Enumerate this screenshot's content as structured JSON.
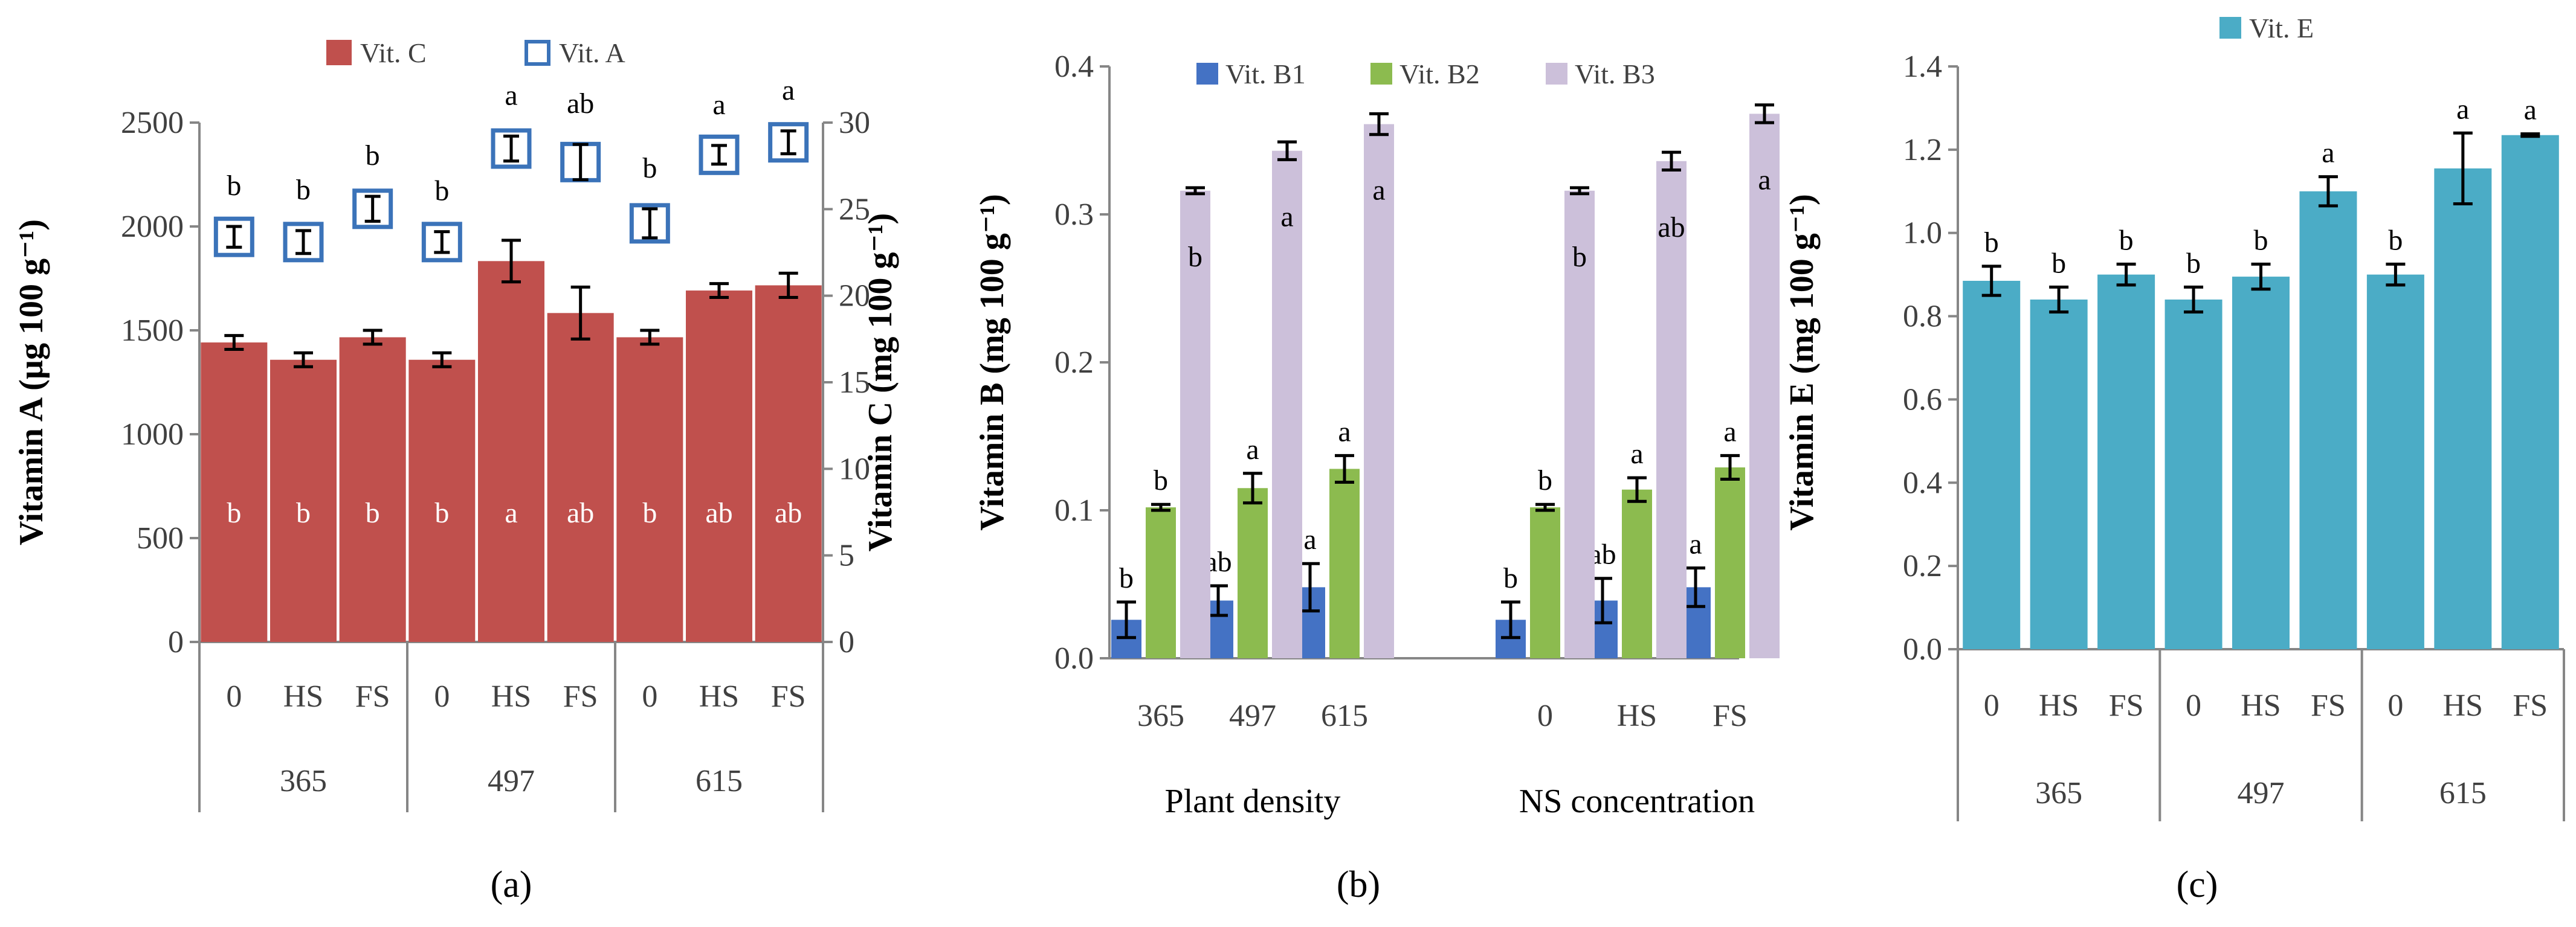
{
  "chart_data": [
    {
      "panel": "a",
      "type": "bar",
      "panel_label": "(a)",
      "categories": [
        "0",
        "HS",
        "FS",
        "0",
        "HS",
        "FS",
        "0",
        "HS",
        "FS"
      ],
      "groups": [
        "365",
        "497",
        "615"
      ],
      "ylabel_left": "Vitamin A (µg 100 g⁻¹)",
      "ylabel_right": "Vitamin C (mg 100 g⁻¹)",
      "ylim_left": [
        0,
        2500
      ],
      "ylim_right": [
        0,
        30
      ],
      "yticks_left": [
        "0",
        "500",
        "1000",
        "1500",
        "2000",
        "2500"
      ],
      "yticks_right": [
        "0",
        "5",
        "10",
        "15",
        "20",
        "25",
        "30"
      ],
      "legend": [
        "Vit. C",
        "Vit. A"
      ],
      "series": [
        {
          "name": "Vit. C",
          "axis": "right",
          "mark": "bar",
          "color": "#c0504d",
          "values": [
            17.3,
            16.3,
            17.6,
            16.3,
            22.0,
            19.0,
            17.6,
            20.3,
            20.6
          ],
          "errors": [
            0.4,
            0.4,
            0.4,
            0.4,
            1.2,
            1.5,
            0.4,
            0.4,
            0.7
          ],
          "letters": [
            "b",
            "b",
            "b",
            "b",
            "a",
            "ab",
            "b",
            "ab",
            "ab"
          ]
        },
        {
          "name": "Vit. A",
          "axis": "left",
          "mark": "square",
          "color": "#3b73b9",
          "values": [
            1950,
            1925,
            2085,
            1925,
            2375,
            2310,
            2015,
            2345,
            2405
          ],
          "errors": [
            50,
            55,
            60,
            50,
            60,
            85,
            70,
            45,
            55
          ],
          "letters": [
            "b",
            "b",
            "b",
            "b",
            "a",
            "ab",
            "b",
            "a",
            "a"
          ]
        }
      ]
    },
    {
      "panel": "b",
      "type": "bar",
      "panel_label": "(b)",
      "categories": [
        "365",
        "497",
        "615",
        "0",
        "HS",
        "FS"
      ],
      "groups": [
        "Plant density",
        "NS concentration"
      ],
      "ylabel": "Vitamin B (mg 100 g⁻¹)",
      "ylim": [
        0,
        0.4
      ],
      "yticks": [
        "0.0",
        "0.1",
        "0.2",
        "0.3",
        "0.4"
      ],
      "legend": [
        "Vit. B1",
        "Vit. B2",
        "Vit. B3"
      ],
      "series": [
        {
          "name": "Vit. B1",
          "color": "#4472c4",
          "values": [
            0.026,
            0.039,
            0.048,
            0.026,
            0.039,
            0.048
          ],
          "errors": [
            0.012,
            0.01,
            0.016,
            0.012,
            0.015,
            0.013
          ],
          "letters": [
            "b",
            "ab",
            "a",
            "b",
            "ab",
            "a"
          ]
        },
        {
          "name": "Vit. B2",
          "color": "#8cbb4f",
          "values": [
            0.102,
            0.115,
            0.128,
            0.102,
            0.114,
            0.129
          ],
          "errors": [
            0.002,
            0.01,
            0.009,
            0.002,
            0.008,
            0.008
          ],
          "letters": [
            "b",
            "a",
            "a",
            "b",
            "a",
            "a"
          ]
        },
        {
          "name": "Vit. B3",
          "color": "#ccc0da",
          "values": [
            0.316,
            0.343,
            0.361,
            0.316,
            0.336,
            0.368
          ],
          "errors": [
            0.002,
            0.006,
            0.007,
            0.002,
            0.006,
            0.006
          ],
          "letters": [
            "b",
            "a",
            "a",
            "b",
            "ab",
            "a"
          ]
        }
      ]
    },
    {
      "panel": "c",
      "type": "bar",
      "panel_label": "(c)",
      "categories": [
        "0",
        "HS",
        "FS",
        "0",
        "HS",
        "FS",
        "0",
        "HS",
        "FS"
      ],
      "groups": [
        "365",
        "497",
        "615"
      ],
      "ylabel": "Vitamin E (mg 100 g⁻¹)",
      "ylim": [
        0,
        1.4
      ],
      "yticks": [
        "0.0",
        "0.2",
        "0.4",
        "0.6",
        "0.8",
        "1.0",
        "1.2",
        "1.4"
      ],
      "legend": [
        "Vit. E"
      ],
      "series": [
        {
          "name": "Vit. E",
          "color": "#4bacc6",
          "values": [
            0.885,
            0.84,
            0.9,
            0.84,
            0.895,
            1.1,
            0.9,
            1.155,
            1.235
          ],
          "errors": [
            0.035,
            0.03,
            0.025,
            0.03,
            0.03,
            0.035,
            0.025,
            0.085,
            0.003
          ],
          "letters": [
            "b",
            "b",
            "b",
            "b",
            "b",
            "a",
            "b",
            "a",
            "a"
          ]
        }
      ]
    }
  ]
}
